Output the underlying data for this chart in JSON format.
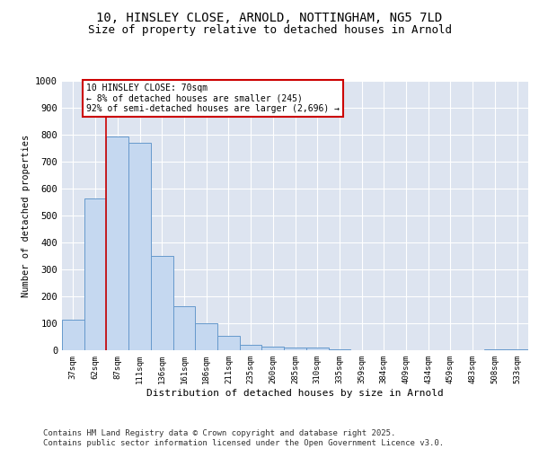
{
  "title_line1": "10, HINSLEY CLOSE, ARNOLD, NOTTINGHAM, NG5 7LD",
  "title_line2": "Size of property relative to detached houses in Arnold",
  "xlabel": "Distribution of detached houses by size in Arnold",
  "ylabel": "Number of detached properties",
  "background_color": "#dde4f0",
  "bar_color": "#c5d8f0",
  "bar_edge_color": "#6699cc",
  "grid_color": "#ffffff",
  "annotation_box_color": "#cc0000",
  "property_line_color": "#cc0000",
  "annotation_text": "10 HINSLEY CLOSE: 70sqm\n← 8% of detached houses are smaller (245)\n92% of semi-detached houses are larger (2,696) →",
  "categories": [
    "37sqm",
    "62sqm",
    "87sqm",
    "111sqm",
    "136sqm",
    "161sqm",
    "186sqm",
    "211sqm",
    "235sqm",
    "260sqm",
    "285sqm",
    "310sqm",
    "335sqm",
    "359sqm",
    "384sqm",
    "409sqm",
    "434sqm",
    "459sqm",
    "483sqm",
    "508sqm",
    "533sqm"
  ],
  "bar_values": [
    115,
    565,
    795,
    770,
    350,
    165,
    100,
    55,
    20,
    15,
    10,
    10,
    5,
    0,
    0,
    0,
    0,
    0,
    0,
    5,
    5
  ],
  "ylim": [
    0,
    1000
  ],
  "yticks": [
    0,
    100,
    200,
    300,
    400,
    500,
    600,
    700,
    800,
    900,
    1000
  ],
  "footer": "Contains HM Land Registry data © Crown copyright and database right 2025.\nContains public sector information licensed under the Open Government Licence v3.0.",
  "footnote_fontsize": 6.5,
  "title_fontsize1": 10,
  "title_fontsize2": 9
}
